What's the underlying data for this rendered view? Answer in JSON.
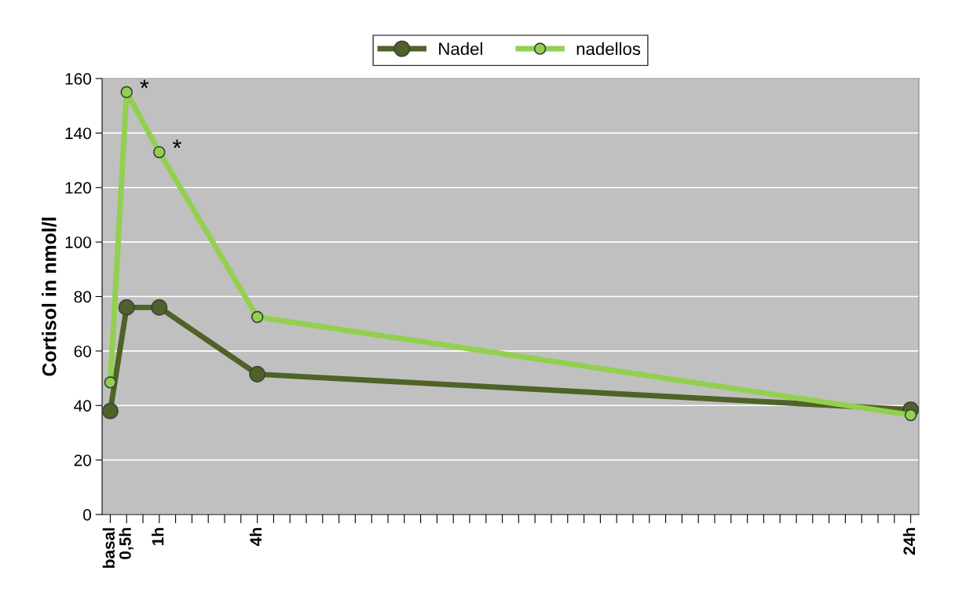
{
  "chart_data": {
    "type": "line",
    "ylabel": "Cortisol in nmol/l",
    "categories": [
      "basal",
      "0,5h",
      null,
      "1h",
      null,
      null,
      null,
      null,
      null,
      "4h",
      null,
      null,
      null,
      null,
      null,
      null,
      null,
      null,
      null,
      null,
      null,
      null,
      null,
      null,
      null,
      null,
      null,
      null,
      null,
      null,
      null,
      null,
      null,
      null,
      null,
      null,
      null,
      null,
      null,
      null,
      null,
      null,
      null,
      null,
      null,
      null,
      null,
      null,
      null,
      "24h"
    ],
    "series": [
      {
        "name": "Nadel",
        "color": "#4f6228",
        "values": [
          38,
          76,
          null,
          76,
          null,
          null,
          null,
          null,
          null,
          51.5,
          null,
          null,
          null,
          null,
          null,
          null,
          null,
          null,
          null,
          null,
          null,
          null,
          null,
          null,
          null,
          null,
          null,
          null,
          null,
          null,
          null,
          null,
          null,
          null,
          null,
          null,
          null,
          null,
          null,
          null,
          null,
          null,
          null,
          null,
          null,
          null,
          null,
          null,
          null,
          38.5
        ]
      },
      {
        "name": "nadellos",
        "color": "#92d050",
        "values": [
          48.5,
          155,
          null,
          133,
          null,
          null,
          null,
          null,
          null,
          72.5,
          null,
          null,
          null,
          null,
          null,
          null,
          null,
          null,
          null,
          null,
          null,
          null,
          null,
          null,
          null,
          null,
          null,
          null,
          null,
          null,
          null,
          null,
          null,
          null,
          null,
          null,
          null,
          null,
          null,
          null,
          null,
          null,
          null,
          null,
          null,
          null,
          null,
          null,
          null,
          36.5
        ]
      }
    ],
    "ylim": [
      0,
      160
    ],
    "yticks": [
      0,
      20,
      40,
      60,
      80,
      100,
      120,
      140,
      160
    ],
    "grid": "y",
    "legend": "top",
    "marker": "circle",
    "line_style": "solid",
    "annotations": [
      {
        "text": "*",
        "x": "0,5h",
        "y": 155
      },
      {
        "text": "*",
        "x": "1h",
        "y": 133
      }
    ]
  }
}
